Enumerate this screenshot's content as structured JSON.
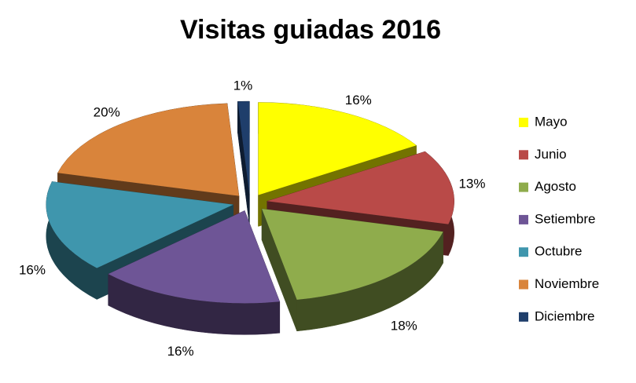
{
  "chart_data": {
    "type": "pie",
    "title": "Visitas guiadas 2016",
    "categories": [
      "Mayo",
      "Junio",
      "Agosto",
      "Setiembre",
      "Octubre",
      "Noviembre",
      "Diciembre"
    ],
    "values": [
      16,
      13,
      18,
      16,
      16,
      20,
      1
    ],
    "value_labels": [
      "16%",
      "13%",
      "18%",
      "16%",
      "16%",
      "20%",
      "1%"
    ],
    "colors": [
      "#ffff00",
      "#b94a48",
      "#8fac4c",
      "#6e5596",
      "#3f96ad",
      "#d9843b",
      "#1f3e6b"
    ],
    "legend": "right"
  }
}
